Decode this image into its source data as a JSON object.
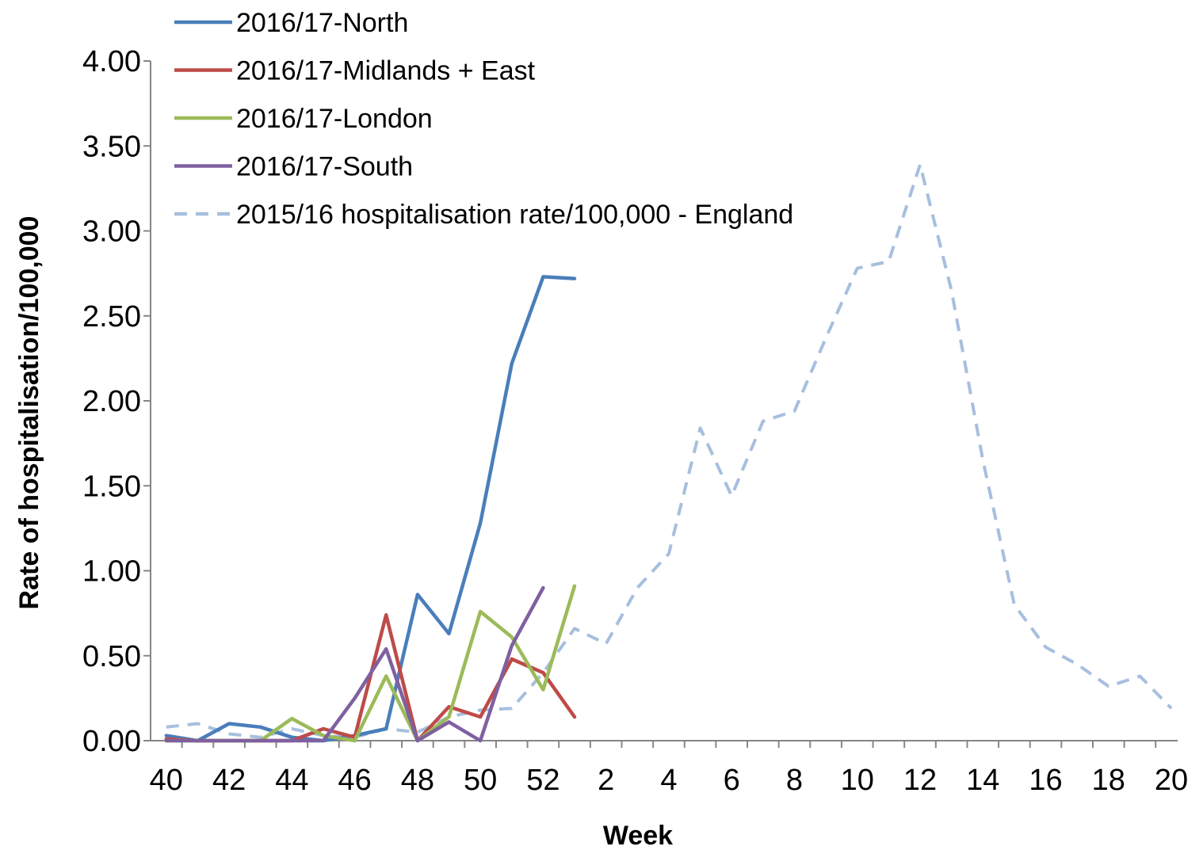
{
  "chart_data": {
    "type": "line",
    "title": "",
    "xlabel": "Week",
    "ylabel": "Rate of hospitalisation/100,000",
    "ylim": [
      0,
      4
    ],
    "y_ticks": [
      "0.00",
      "0.50",
      "1.00",
      "1.50",
      "2.00",
      "2.50",
      "3.00",
      "3.50",
      "4.00"
    ],
    "x_categories": [
      40,
      41,
      42,
      43,
      44,
      45,
      46,
      47,
      48,
      49,
      50,
      51,
      52,
      1,
      2,
      3,
      4,
      5,
      6,
      7,
      8,
      9,
      10,
      11,
      12,
      13,
      14,
      15,
      16,
      17,
      18,
      19,
      20
    ],
    "x_tick_labels": [
      "40",
      "42",
      "44",
      "46",
      "48",
      "50",
      "52",
      "2",
      "4",
      "6",
      "8",
      "10",
      "12",
      "14",
      "16",
      "18",
      "20"
    ],
    "grid": false,
    "legend_position": "top-left",
    "series": [
      {
        "name": "2016/17-North",
        "color": "#4a7ebb",
        "dashed": false,
        "values": [
          0.03,
          0.0,
          0.1,
          0.08,
          0.02,
          0.0,
          0.03,
          0.07,
          0.86,
          0.63,
          1.28,
          2.22,
          2.73,
          2.72
        ]
      },
      {
        "name": "2016/17-Midlands + East",
        "color": "#be4b48",
        "dashed": false,
        "values": [
          0.01,
          0.0,
          0.0,
          0.0,
          0.0,
          0.07,
          0.02,
          0.74,
          0.0,
          0.2,
          0.14,
          0.48,
          0.4,
          0.14
        ]
      },
      {
        "name": "2016/17-London",
        "color": "#9bbb59",
        "dashed": false,
        "values": [
          0.0,
          0.0,
          0.0,
          0.0,
          0.13,
          0.03,
          0.0,
          0.38,
          0.0,
          0.14,
          0.76,
          0.61,
          0.3,
          0.91
        ]
      },
      {
        "name": "2016/17-South",
        "color": "#7f60a0",
        "dashed": false,
        "values": [
          0.0,
          0.0,
          0.0,
          0.0,
          0.0,
          0.0,
          0.25,
          0.54,
          0.0,
          0.11,
          0.0,
          0.56,
          0.9
        ]
      },
      {
        "name": "2015/16 hospitalisation rate/100,000 - England",
        "color": "#a7bfde",
        "dashed": true,
        "values": [
          0.08,
          0.1,
          0.04,
          0.02,
          0.07,
          0.03,
          0.02,
          0.07,
          0.05,
          0.14,
          0.18,
          0.19,
          0.4,
          0.66,
          0.57,
          0.9,
          1.1,
          1.84,
          1.44,
          1.88,
          1.94,
          2.37,
          2.78,
          2.82,
          3.39,
          2.65,
          1.65,
          0.8,
          0.55,
          0.45,
          0.32,
          0.38,
          0.19
        ]
      }
    ]
  }
}
